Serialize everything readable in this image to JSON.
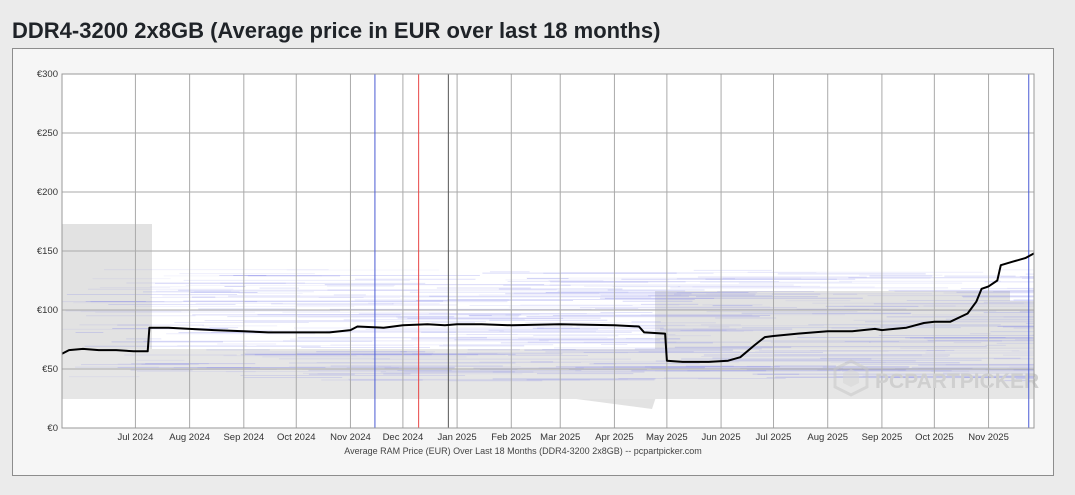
{
  "page": {
    "title": "DDR4-3200 2x8GB (Average price in EUR over last 18 months)"
  },
  "chart_data": {
    "type": "line",
    "title": "DDR4-3200 2x8GB (Average price in EUR over last 18 months)",
    "xlabel": "Average RAM Price (EUR) Over Last 18 Months (DDR4-3200 2x8GB) -- pcpartpicker.com",
    "ylabel": "",
    "x_range": [
      "2024-05-20",
      "2025-11-27"
    ],
    "ylim": [
      0,
      300
    ],
    "y_ticks": [
      0,
      50,
      100,
      150,
      200,
      250,
      300
    ],
    "y_tick_labels": [
      "€0",
      "€50",
      "€100",
      "€150",
      "€200",
      "€250",
      "€300"
    ],
    "x_ticks": [
      "2024-07-01",
      "2024-08-01",
      "2024-09-01",
      "2024-10-01",
      "2024-11-01",
      "2024-12-01",
      "2025-01-01",
      "2025-02-01",
      "2025-03-01",
      "2025-04-01",
      "2025-05-01",
      "2025-06-01",
      "2025-07-01",
      "2025-08-01",
      "2025-09-01",
      "2025-10-01",
      "2025-11-01"
    ],
    "x_tick_labels": [
      "Jul 2024",
      "Aug 2024",
      "Sep 2024",
      "Oct 2024",
      "Nov 2024",
      "Dec 2024",
      "Jan 2025",
      "Feb 2025",
      "Mar 2025",
      "Apr 2025",
      "May 2025",
      "Jun 2025",
      "Jul 2025",
      "Aug 2025",
      "Sep 2025",
      "Oct 2025",
      "Nov 2025"
    ],
    "grid": true,
    "series": [
      {
        "color": "#000000",
        "points": [
          [
            "2024-05-20",
            63
          ],
          [
            "2024-05-24",
            66
          ],
          [
            "2024-06-01",
            67
          ],
          [
            "2024-06-10",
            66
          ],
          [
            "2024-06-20",
            66
          ],
          [
            "2024-06-30",
            65
          ],
          [
            "2024-07-08",
            65
          ],
          [
            "2024-07-09",
            85
          ],
          [
            "2024-07-20",
            85
          ],
          [
            "2024-08-01",
            84
          ],
          [
            "2024-08-15",
            83
          ],
          [
            "2024-09-01",
            82
          ],
          [
            "2024-09-15",
            81
          ],
          [
            "2024-10-01",
            81
          ],
          [
            "2024-10-20",
            81
          ],
          [
            "2024-11-01",
            83
          ],
          [
            "2024-11-05",
            86
          ],
          [
            "2024-11-20",
            85
          ],
          [
            "2024-12-01",
            87
          ],
          [
            "2024-12-15",
            88
          ],
          [
            "2024-12-25",
            87
          ],
          [
            "2025-01-01",
            88
          ],
          [
            "2025-01-15",
            88
          ],
          [
            "2025-02-01",
            87
          ],
          [
            "2025-03-01",
            88
          ],
          [
            "2025-04-01",
            87
          ],
          [
            "2025-04-15",
            86
          ],
          [
            "2025-04-18",
            81
          ],
          [
            "2025-04-30",
            80
          ],
          [
            "2025-05-01",
            57
          ],
          [
            "2025-05-10",
            56
          ],
          [
            "2025-05-25",
            56
          ],
          [
            "2025-06-05",
            57
          ],
          [
            "2025-06-12",
            60
          ],
          [
            "2025-06-20",
            70
          ],
          [
            "2025-06-26",
            77
          ],
          [
            "2025-07-01",
            78
          ],
          [
            "2025-07-15",
            80
          ],
          [
            "2025-08-01",
            82
          ],
          [
            "2025-08-15",
            82
          ],
          [
            "2025-08-28",
            84
          ],
          [
            "2025-09-01",
            83
          ],
          [
            "2025-09-15",
            85
          ],
          [
            "2025-09-25",
            89
          ],
          [
            "2025-10-01",
            90
          ],
          [
            "2025-10-10",
            90
          ],
          [
            "2025-10-20",
            97
          ],
          [
            "2025-10-25",
            107
          ],
          [
            "2025-10-28",
            118
          ],
          [
            "2025-11-01",
            120
          ],
          [
            "2025-11-06",
            125
          ],
          [
            "2025-11-08",
            138
          ],
          [
            "2025-11-15",
            141
          ],
          [
            "2025-11-22",
            144
          ],
          [
            "2025-11-27",
            148
          ]
        ]
      }
    ],
    "reference_lines": [
      {
        "x": "2024-11-15",
        "color": "#4a5bd4"
      },
      {
        "x": "2024-12-10",
        "color": "#e84848"
      },
      {
        "x": "2024-12-27",
        "color": "#555555"
      },
      {
        "x": "2025-11-24",
        "color": "#4a5bd4"
      }
    ],
    "watermark": "PCPARTPICKER",
    "colors": {
      "line": "#000000",
      "bands": "#7b7fe8",
      "range_fill": "#e2e2e2",
      "grid": "#aaaaaa",
      "watermark": "#cfcfcf"
    }
  }
}
